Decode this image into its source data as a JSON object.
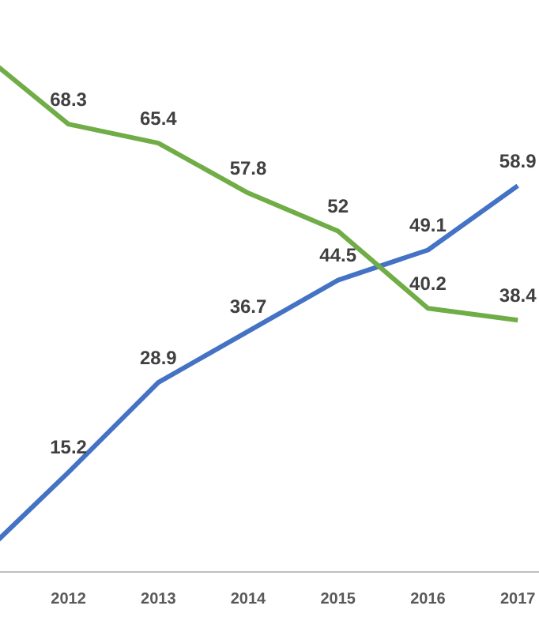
{
  "chart_data": {
    "type": "line",
    "categories": [
      null,
      "2012",
      "2013",
      "2014",
      "2015",
      "2016",
      "2017"
    ],
    "series": [
      {
        "color": "#70ad47",
        "values": [
          79.5,
          68.3,
          65.4,
          57.8,
          52,
          40.2,
          38.4
        ],
        "value_labels": [
          null,
          "68.3",
          "65.4",
          "57.8",
          "52",
          "40.2",
          "38.4"
        ]
      },
      {
        "color": "#4472c4",
        "values": [
          2,
          15.2,
          28.9,
          36.7,
          44.5,
          49.1,
          58.9
        ],
        "value_labels": [
          null,
          "15.2",
          "28.9",
          "36.7",
          "44.5",
          "49.1",
          "58.9"
        ]
      }
    ],
    "grid": false,
    "legend": false,
    "marker": "none",
    "line_style": "solid",
    "tick_labels": "x"
  }
}
